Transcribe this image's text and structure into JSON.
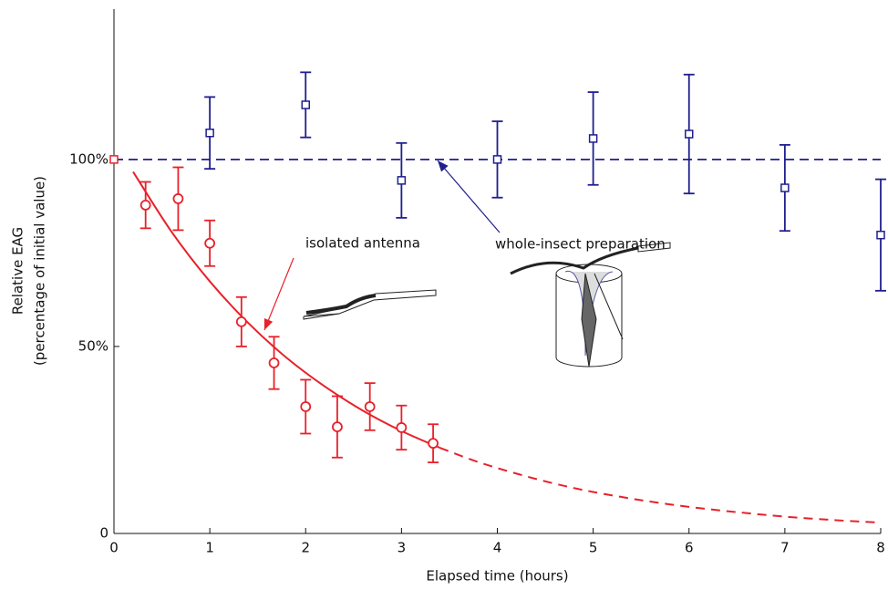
{
  "chart_data": {
    "type": "errorbar",
    "xlabel": "Elapsed time (hours)",
    "ylabel": [
      "Relative EAG",
      "(percentage of initial value)"
    ],
    "xlim": [
      0,
      8
    ],
    "ylim": [
      0,
      140.2
    ],
    "xticks": [
      0,
      1,
      2,
      3,
      4,
      5,
      6,
      7,
      8
    ],
    "yticks": [
      0,
      {
        "value": 50,
        "label": "50%"
      },
      {
        "value": 100,
        "label": "100%"
      }
    ],
    "reference_line": {
      "value": 100,
      "color": "#1f1f8f"
    },
    "series": [
      {
        "color": "#1f1f8f",
        "marker": "square",
        "x": [
          1,
          2,
          3,
          4,
          5,
          6,
          7,
          8
        ],
        "values": [
          107.1,
          114.6,
          94.4,
          100,
          105.6,
          106.8,
          92.4,
          79.8
        ],
        "errors": [
          9.6,
          8.7,
          10,
          10.2,
          12.4,
          15.9,
          11.5,
          14.9
        ]
      },
      {
        "color": "#e8212a",
        "marker": "circle",
        "x": [
          0.33,
          0.67,
          1,
          1.33,
          1.67,
          2,
          2.33,
          2.67,
          3,
          3.33
        ],
        "values": [
          87.8,
          89.5,
          77.6,
          56.6,
          45.6,
          33.9,
          28.5,
          33.9,
          28.3,
          24.1
        ],
        "errors": [
          6.2,
          8.4,
          6.1,
          6.6,
          7,
          7.2,
          8.2,
          6.3,
          5.9,
          5.1
        ]
      },
      {
        "color": "#e8212a",
        "marker": "square",
        "x": [
          0
        ],
        "values": [
          100
        ]
      }
    ],
    "fit": [
      {
        "color": "#e8212a",
        "style": "solid",
        "x": [
          0.2,
          0.6,
          1.0,
          1.4,
          1.8,
          2.2,
          2.6,
          3.0,
          3.4
        ],
        "values": [
          96.7,
          80.7,
          67.4,
          56.3,
          47.0,
          39.3,
          32.8,
          27.4,
          22.9
        ]
      },
      {
        "color": "#e8212a",
        "style": "dashed",
        "x": [
          3.4,
          3.8,
          4.2,
          4.6,
          5.0,
          5.5,
          6.0,
          6.5,
          7.0,
          7.5,
          8.0
        ],
        "values": [
          22.9,
          19.1,
          16.0,
          13.3,
          11.1,
          8.9,
          7.1,
          5.7,
          4.5,
          3.6,
          2.9
        ]
      }
    ],
    "annotations": [
      {
        "text": "isolated antenna",
        "color": "#e8212a"
      },
      {
        "text": "whole-insect preparation",
        "color": "#1f1f8f"
      }
    ]
  }
}
